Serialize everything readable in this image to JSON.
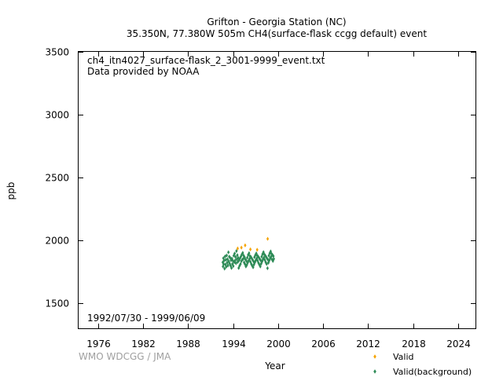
{
  "chart_data": {
    "type": "scatter",
    "title": "Grifton - Georgia Station (NC)",
    "subtitle": "35.350N, 77.380W 505m    CH4(surface-flask ccgg default) event",
    "annotation_file": "ch4_itn4027_surface-flask_2_3001-9999_event.txt",
    "annotation_provider": "Data provided by NOAA",
    "date_range": "1992/07/30 - 1999/06/09",
    "credit": "WMO WDCGG / JMA",
    "xlabel": "Year",
    "ylabel": "ppb",
    "xlim": [
      1973.4,
      2026.3
    ],
    "ylim": [
      1300,
      3500
    ],
    "x_ticks": [
      1976,
      1982,
      1988,
      1994,
      2000,
      2006,
      2012,
      2018,
      2024
    ],
    "y_ticks": [
      1500,
      2000,
      2500,
      3000,
      3500
    ],
    "grid": false,
    "legend_position": "bottom-right",
    "series": [
      {
        "name": "Valid",
        "color": "#f5a300",
        "marker": "diamond",
        "points": [
          [
            1994.6,
            1935
          ],
          [
            1995.1,
            1942
          ],
          [
            1995.6,
            1960
          ],
          [
            1996.3,
            1928
          ],
          [
            1997.2,
            1925
          ],
          [
            1998.6,
            2012
          ]
        ]
      },
      {
        "name": "Valid(background)",
        "color": "#2e8b57",
        "marker": "diamond",
        "points": [
          [
            1992.62,
            1825
          ],
          [
            1992.65,
            1792
          ],
          [
            1992.7,
            1858
          ],
          [
            1992.74,
            1810
          ],
          [
            1992.8,
            1840
          ],
          [
            1992.86,
            1775
          ],
          [
            1992.92,
            1872
          ],
          [
            1992.97,
            1808
          ],
          [
            1993.03,
            1845
          ],
          [
            1993.08,
            1790
          ],
          [
            1993.14,
            1880
          ],
          [
            1993.2,
            1822
          ],
          [
            1993.25,
            1850
          ],
          [
            1993.31,
            1800
          ],
          [
            1993.37,
            1905
          ],
          [
            1993.42,
            1833
          ],
          [
            1993.48,
            1870
          ],
          [
            1993.54,
            1815
          ],
          [
            1993.6,
            1862
          ],
          [
            1993.66,
            1798
          ],
          [
            1993.72,
            1842
          ],
          [
            1993.78,
            1780
          ],
          [
            1993.84,
            1855
          ],
          [
            1993.9,
            1812
          ],
          [
            1993.96,
            1838
          ],
          [
            1994.02,
            1795
          ],
          [
            1994.08,
            1878
          ],
          [
            1994.14,
            1826
          ],
          [
            1994.2,
            1895
          ],
          [
            1994.26,
            1840
          ],
          [
            1994.32,
            1868
          ],
          [
            1994.38,
            1818
          ],
          [
            1994.44,
            1915
          ],
          [
            1994.5,
            1850
          ],
          [
            1994.56,
            1882
          ],
          [
            1994.62,
            1828
          ],
          [
            1994.68,
            1860
          ],
          [
            1994.74,
            1780
          ],
          [
            1994.8,
            1842
          ],
          [
            1994.86,
            1798
          ],
          [
            1994.92,
            1858
          ],
          [
            1994.98,
            1812
          ],
          [
            1995.04,
            1872
          ],
          [
            1995.1,
            1834
          ],
          [
            1995.16,
            1888
          ],
          [
            1995.22,
            1846
          ],
          [
            1995.28,
            1900
          ],
          [
            1995.34,
            1852
          ],
          [
            1995.4,
            1878
          ],
          [
            1995.46,
            1824
          ],
          [
            1995.52,
            1866
          ],
          [
            1995.58,
            1810
          ],
          [
            1995.64,
            1848
          ],
          [
            1995.7,
            1792
          ],
          [
            1995.76,
            1836
          ],
          [
            1995.82,
            1804
          ],
          [
            1995.88,
            1862
          ],
          [
            1995.94,
            1822
          ],
          [
            1996.0,
            1884
          ],
          [
            1996.06,
            1838
          ],
          [
            1996.12,
            1898
          ],
          [
            1996.18,
            1852
          ],
          [
            1996.24,
            1874
          ],
          [
            1996.3,
            1830
          ],
          [
            1996.36,
            1868
          ],
          [
            1996.42,
            1812
          ],
          [
            1996.48,
            1856
          ],
          [
            1996.54,
            1798
          ],
          [
            1996.6,
            1844
          ],
          [
            1996.66,
            1786
          ],
          [
            1996.72,
            1832
          ],
          [
            1996.78,
            1808
          ],
          [
            1996.84,
            1866
          ],
          [
            1996.9,
            1826
          ],
          [
            1996.96,
            1882
          ],
          [
            1997.02,
            1842
          ],
          [
            1997.08,
            1896
          ],
          [
            1997.14,
            1856
          ],
          [
            1997.2,
            1880
          ],
          [
            1997.26,
            1838
          ],
          [
            1997.32,
            1872
          ],
          [
            1997.38,
            1820
          ],
          [
            1997.44,
            1862
          ],
          [
            1997.5,
            1806
          ],
          [
            1997.56,
            1850
          ],
          [
            1997.62,
            1792
          ],
          [
            1997.68,
            1840
          ],
          [
            1997.74,
            1814
          ],
          [
            1997.8,
            1870
          ],
          [
            1997.86,
            1832
          ],
          [
            1997.92,
            1890
          ],
          [
            1997.98,
            1850
          ],
          [
            1998.04,
            1906
          ],
          [
            1998.1,
            1862
          ],
          [
            1998.16,
            1888
          ],
          [
            1998.22,
            1844
          ],
          [
            1998.28,
            1878
          ],
          [
            1998.34,
            1826
          ],
          [
            1998.4,
            1868
          ],
          [
            1998.46,
            1812
          ],
          [
            1998.52,
            1856
          ],
          [
            1998.58,
            1778
          ],
          [
            1998.64,
            1846
          ],
          [
            1998.7,
            1822
          ],
          [
            1998.76,
            1878
          ],
          [
            1998.82,
            1840
          ],
          [
            1998.88,
            1898
          ],
          [
            1998.94,
            1858
          ],
          [
            1999.0,
            1912
          ],
          [
            1999.06,
            1870
          ],
          [
            1999.12,
            1892
          ],
          [
            1999.18,
            1848
          ],
          [
            1999.24,
            1884
          ],
          [
            1999.3,
            1836
          ],
          [
            1999.36,
            1874
          ],
          [
            1999.42,
            1852
          ]
        ]
      }
    ]
  }
}
